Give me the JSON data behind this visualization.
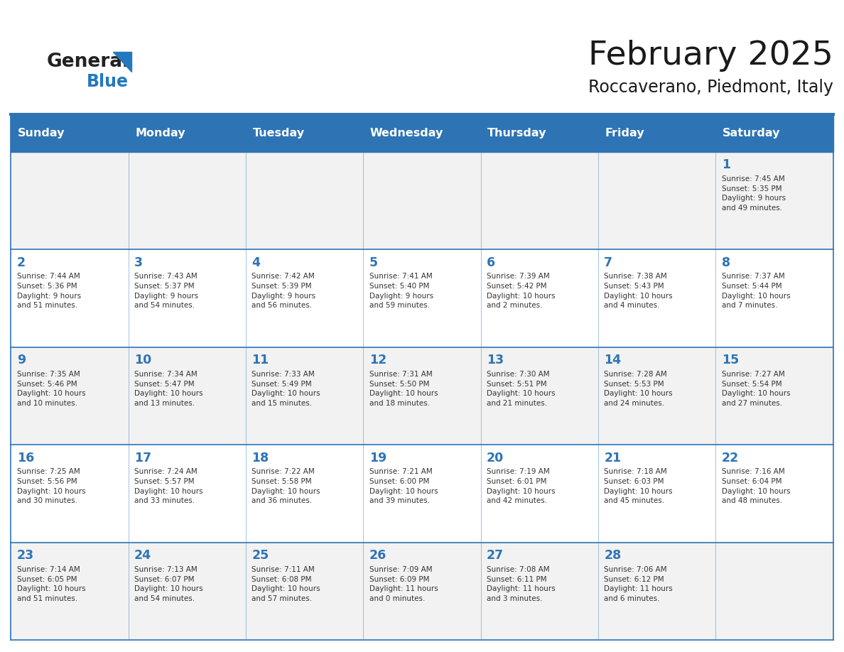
{
  "title": "February 2025",
  "subtitle": "Roccaverano, Piedmont, Italy",
  "days_of_week": [
    "Sunday",
    "Monday",
    "Tuesday",
    "Wednesday",
    "Thursday",
    "Friday",
    "Saturday"
  ],
  "header_bg": "#2E74B5",
  "header_text": "#FFFFFF",
  "cell_bg_odd": "#F2F2F2",
  "cell_bg_even": "#FFFFFF",
  "day_number_color": "#2E74B5",
  "text_color": "#333333",
  "border_color": "#2E74B5",
  "logo_general_color": "#222222",
  "logo_blue_color": "#2479BD",
  "weeks": [
    [
      {
        "day": null,
        "info": ""
      },
      {
        "day": null,
        "info": ""
      },
      {
        "day": null,
        "info": ""
      },
      {
        "day": null,
        "info": ""
      },
      {
        "day": null,
        "info": ""
      },
      {
        "day": null,
        "info": ""
      },
      {
        "day": 1,
        "info": "Sunrise: 7:45 AM\nSunset: 5:35 PM\nDaylight: 9 hours\nand 49 minutes."
      }
    ],
    [
      {
        "day": 2,
        "info": "Sunrise: 7:44 AM\nSunset: 5:36 PM\nDaylight: 9 hours\nand 51 minutes."
      },
      {
        "day": 3,
        "info": "Sunrise: 7:43 AM\nSunset: 5:37 PM\nDaylight: 9 hours\nand 54 minutes."
      },
      {
        "day": 4,
        "info": "Sunrise: 7:42 AM\nSunset: 5:39 PM\nDaylight: 9 hours\nand 56 minutes."
      },
      {
        "day": 5,
        "info": "Sunrise: 7:41 AM\nSunset: 5:40 PM\nDaylight: 9 hours\nand 59 minutes."
      },
      {
        "day": 6,
        "info": "Sunrise: 7:39 AM\nSunset: 5:42 PM\nDaylight: 10 hours\nand 2 minutes."
      },
      {
        "day": 7,
        "info": "Sunrise: 7:38 AM\nSunset: 5:43 PM\nDaylight: 10 hours\nand 4 minutes."
      },
      {
        "day": 8,
        "info": "Sunrise: 7:37 AM\nSunset: 5:44 PM\nDaylight: 10 hours\nand 7 minutes."
      }
    ],
    [
      {
        "day": 9,
        "info": "Sunrise: 7:35 AM\nSunset: 5:46 PM\nDaylight: 10 hours\nand 10 minutes."
      },
      {
        "day": 10,
        "info": "Sunrise: 7:34 AM\nSunset: 5:47 PM\nDaylight: 10 hours\nand 13 minutes."
      },
      {
        "day": 11,
        "info": "Sunrise: 7:33 AM\nSunset: 5:49 PM\nDaylight: 10 hours\nand 15 minutes."
      },
      {
        "day": 12,
        "info": "Sunrise: 7:31 AM\nSunset: 5:50 PM\nDaylight: 10 hours\nand 18 minutes."
      },
      {
        "day": 13,
        "info": "Sunrise: 7:30 AM\nSunset: 5:51 PM\nDaylight: 10 hours\nand 21 minutes."
      },
      {
        "day": 14,
        "info": "Sunrise: 7:28 AM\nSunset: 5:53 PM\nDaylight: 10 hours\nand 24 minutes."
      },
      {
        "day": 15,
        "info": "Sunrise: 7:27 AM\nSunset: 5:54 PM\nDaylight: 10 hours\nand 27 minutes."
      }
    ],
    [
      {
        "day": 16,
        "info": "Sunrise: 7:25 AM\nSunset: 5:56 PM\nDaylight: 10 hours\nand 30 minutes."
      },
      {
        "day": 17,
        "info": "Sunrise: 7:24 AM\nSunset: 5:57 PM\nDaylight: 10 hours\nand 33 minutes."
      },
      {
        "day": 18,
        "info": "Sunrise: 7:22 AM\nSunset: 5:58 PM\nDaylight: 10 hours\nand 36 minutes."
      },
      {
        "day": 19,
        "info": "Sunrise: 7:21 AM\nSunset: 6:00 PM\nDaylight: 10 hours\nand 39 minutes."
      },
      {
        "day": 20,
        "info": "Sunrise: 7:19 AM\nSunset: 6:01 PM\nDaylight: 10 hours\nand 42 minutes."
      },
      {
        "day": 21,
        "info": "Sunrise: 7:18 AM\nSunset: 6:03 PM\nDaylight: 10 hours\nand 45 minutes."
      },
      {
        "day": 22,
        "info": "Sunrise: 7:16 AM\nSunset: 6:04 PM\nDaylight: 10 hours\nand 48 minutes."
      }
    ],
    [
      {
        "day": 23,
        "info": "Sunrise: 7:14 AM\nSunset: 6:05 PM\nDaylight: 10 hours\nand 51 minutes."
      },
      {
        "day": 24,
        "info": "Sunrise: 7:13 AM\nSunset: 6:07 PM\nDaylight: 10 hours\nand 54 minutes."
      },
      {
        "day": 25,
        "info": "Sunrise: 7:11 AM\nSunset: 6:08 PM\nDaylight: 10 hours\nand 57 minutes."
      },
      {
        "day": 26,
        "info": "Sunrise: 7:09 AM\nSunset: 6:09 PM\nDaylight: 11 hours\nand 0 minutes."
      },
      {
        "day": 27,
        "info": "Sunrise: 7:08 AM\nSunset: 6:11 PM\nDaylight: 11 hours\nand 3 minutes."
      },
      {
        "day": 28,
        "info": "Sunrise: 7:06 AM\nSunset: 6:12 PM\nDaylight: 11 hours\nand 6 minutes."
      },
      {
        "day": null,
        "info": ""
      }
    ]
  ]
}
